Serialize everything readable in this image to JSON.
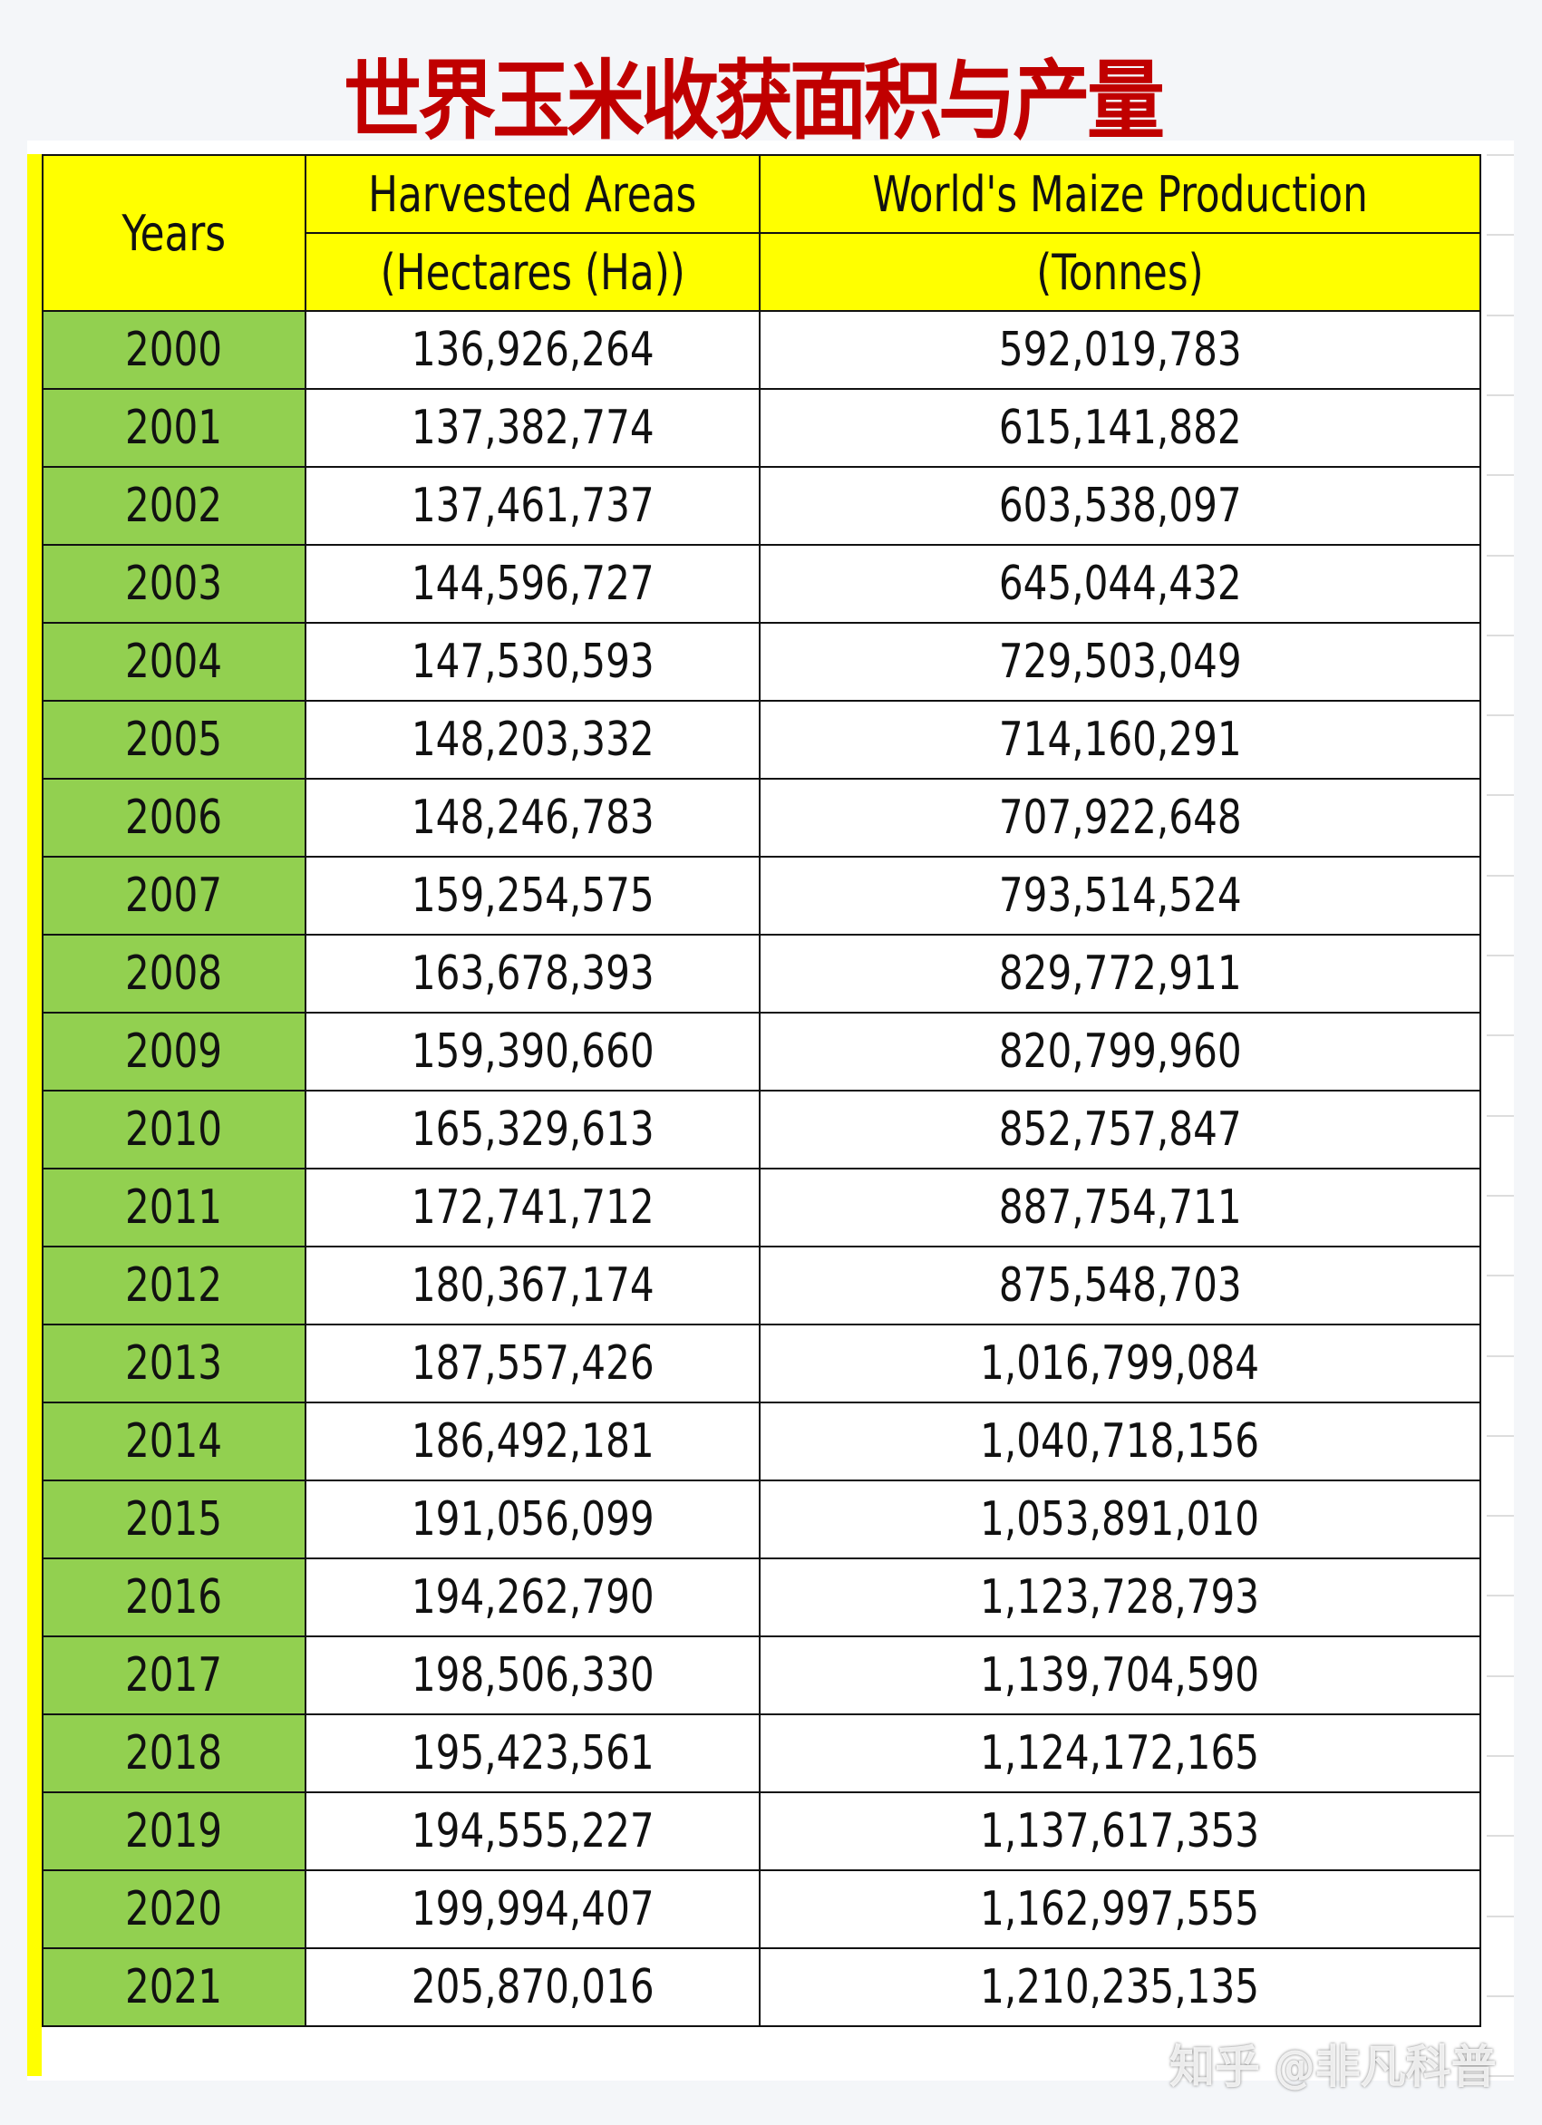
{
  "title": "世界玉米收获面积与产量",
  "headers": {
    "years": "Years",
    "area_line1": "Harvested Areas",
    "area_line2": "(Hectares (Ha))",
    "prod_line1": "World's Maize Production",
    "prod_line2": "(Tonnes)"
  },
  "rows": [
    {
      "year": "2000",
      "area": "136,926,264",
      "production": "592,019,783"
    },
    {
      "year": "2001",
      "area": "137,382,774",
      "production": "615,141,882"
    },
    {
      "year": "2002",
      "area": "137,461,737",
      "production": "603,538,097"
    },
    {
      "year": "2003",
      "area": "144,596,727",
      "production": "645,044,432"
    },
    {
      "year": "2004",
      "area": "147,530,593",
      "production": "729,503,049"
    },
    {
      "year": "2005",
      "area": "148,203,332",
      "production": "714,160,291"
    },
    {
      "year": "2006",
      "area": "148,246,783",
      "production": "707,922,648"
    },
    {
      "year": "2007",
      "area": "159,254,575",
      "production": "793,514,524"
    },
    {
      "year": "2008",
      "area": "163,678,393",
      "production": "829,772,911"
    },
    {
      "year": "2009",
      "area": "159,390,660",
      "production": "820,799,960"
    },
    {
      "year": "2010",
      "area": "165,329,613",
      "production": "852,757,847"
    },
    {
      "year": "2011",
      "area": "172,741,712",
      "production": "887,754,711"
    },
    {
      "year": "2012",
      "area": "180,367,174",
      "production": "875,548,703"
    },
    {
      "year": "2013",
      "area": "187,557,426",
      "production": "1,016,799,084"
    },
    {
      "year": "2014",
      "area": "186,492,181",
      "production": "1,040,718,156"
    },
    {
      "year": "2015",
      "area": "191,056,099",
      "production": "1,053,891,010"
    },
    {
      "year": "2016",
      "area": "194,262,790",
      "production": "1,123,728,793"
    },
    {
      "year": "2017",
      "area": "198,506,330",
      "production": "1,139,704,590"
    },
    {
      "year": "2018",
      "area": "195,423,561",
      "production": "1,124,172,165"
    },
    {
      "year": "2019",
      "area": "194,555,227",
      "production": "1,137,617,353"
    },
    {
      "year": "2020",
      "area": "199,994,407",
      "production": "1,162,997,555"
    },
    {
      "year": "2021",
      "area": "205,870,016",
      "production": "1,210,235,135"
    }
  ],
  "watermark": "知乎 @非凡科普",
  "colors": {
    "title": "#c00000",
    "header_bg": "#ffff00",
    "year_bg": "#92d050"
  }
}
